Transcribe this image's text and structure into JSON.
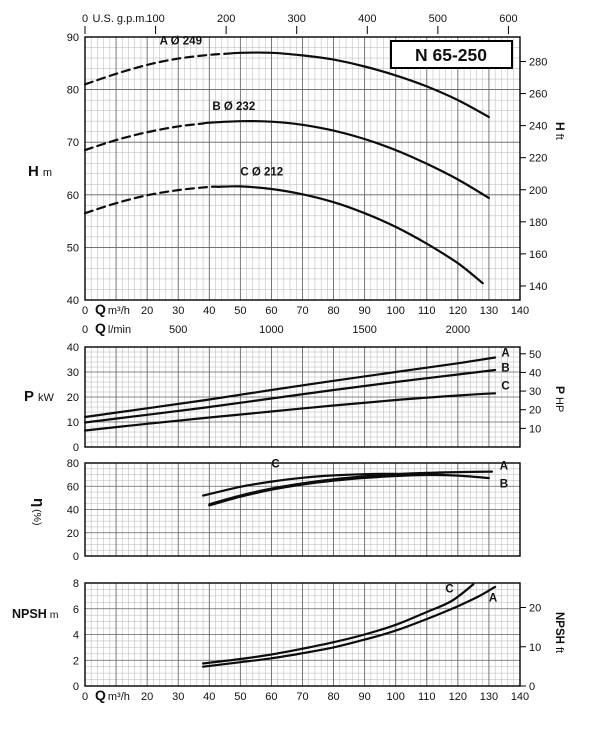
{
  "title": "N 65-250",
  "chart_data": [
    {
      "id": "head",
      "type": "line",
      "x_axis": {
        "symbol": "Q",
        "unit": "m³/h",
        "min": 0,
        "max": 140,
        "major": 10,
        "minor": 2,
        "labeled": true
      },
      "y_axis": {
        "symbol": "H",
        "unit": "m",
        "min": 40,
        "max": 90,
        "major": 10,
        "minor": 2
      },
      "top_axis": {
        "label": "U.S. g.p.m.",
        "unit_key": "usgpm",
        "ticks": [
          0,
          100,
          200,
          300,
          400,
          500,
          600
        ]
      },
      "right_axis": {
        "symbol": "H",
        "unit": "ft",
        "unit_key": "ft",
        "ticks": [
          140,
          160,
          180,
          200,
          220,
          240,
          260,
          280
        ]
      },
      "second_bottom": {
        "symbol": "Q",
        "unit": "l/min",
        "unit_key": "lmin",
        "ticks": [
          0,
          500,
          1000,
          1500,
          2000
        ]
      },
      "series": [
        {
          "name": "A",
          "impeller": "Ø 249",
          "dash_until": 45,
          "points": [
            [
              0,
              81
            ],
            [
              10,
              83
            ],
            [
              20,
              84.7
            ],
            [
              30,
              85.9
            ],
            [
              40,
              86.6
            ],
            [
              50,
              87
            ],
            [
              60,
              87
            ],
            [
              70,
              86.5
            ],
            [
              80,
              85.7
            ],
            [
              90,
              84.4
            ],
            [
              100,
              82.7
            ],
            [
              110,
              80.6
            ],
            [
              120,
              78
            ],
            [
              130,
              74.8
            ]
          ]
        },
        {
          "name": "B",
          "impeller": "Ø 232",
          "dash_until": 38,
          "points": [
            [
              0,
              68.5
            ],
            [
              10,
              70.4
            ],
            [
              20,
              71.9
            ],
            [
              30,
              73
            ],
            [
              40,
              73.7
            ],
            [
              50,
              74
            ],
            [
              60,
              73.9
            ],
            [
              70,
              73.3
            ],
            [
              80,
              72.2
            ],
            [
              90,
              70.6
            ],
            [
              100,
              68.5
            ],
            [
              110,
              65.9
            ],
            [
              120,
              62.9
            ],
            [
              130,
              59.4
            ]
          ]
        },
        {
          "name": "C",
          "impeller": "Ø 212",
          "dash_until": 43,
          "points": [
            [
              0,
              56.5
            ],
            [
              10,
              58.4
            ],
            [
              20,
              59.9
            ],
            [
              30,
              60.9
            ],
            [
              40,
              61.5
            ],
            [
              50,
              61.6
            ],
            [
              60,
              61.1
            ],
            [
              70,
              60.1
            ],
            [
              80,
              58.6
            ],
            [
              90,
              56.5
            ],
            [
              100,
              53.9
            ],
            [
              110,
              50.7
            ],
            [
              120,
              47
            ],
            [
              128,
              43.2
            ]
          ]
        }
      ],
      "curve_labels": [
        {
          "text": "A Ø 249",
          "q": 24,
          "v": 88.6
        },
        {
          "text": "B Ø 232",
          "q": 41,
          "v": 76.1
        },
        {
          "text": "C Ø 212",
          "q": 50,
          "v": 63.7
        }
      ]
    },
    {
      "id": "power",
      "type": "line",
      "x_axis": {
        "min": 0,
        "max": 140,
        "major": 10,
        "minor": 2,
        "labeled": false
      },
      "y_axis": {
        "symbol": "P",
        "unit": "kW",
        "min": 0,
        "max": 40,
        "major": 10,
        "minor": 2
      },
      "right_axis": {
        "symbol": "P",
        "unit": "HP",
        "unit_key": "hp",
        "ticks": [
          10,
          20,
          30,
          40,
          50
        ]
      },
      "series": [
        {
          "name": "A",
          "points": [
            [
              0,
              12
            ],
            [
              20,
              15.5
            ],
            [
              40,
              19
            ],
            [
              60,
              22.8
            ],
            [
              80,
              26.5
            ],
            [
              100,
              30
            ],
            [
              120,
              33.5
            ],
            [
              132,
              35.8
            ]
          ]
        },
        {
          "name": "B",
          "points": [
            [
              0,
              9.8
            ],
            [
              20,
              12.9
            ],
            [
              40,
              16
            ],
            [
              60,
              19.4
            ],
            [
              80,
              22.8
            ],
            [
              100,
              26
            ],
            [
              120,
              29
            ],
            [
              132,
              30.8
            ]
          ]
        },
        {
          "name": "C",
          "points": [
            [
              0,
              6.6
            ],
            [
              20,
              9.3
            ],
            [
              40,
              11.8
            ],
            [
              60,
              14.2
            ],
            [
              80,
              16.6
            ],
            [
              100,
              18.8
            ],
            [
              120,
              20.6
            ],
            [
              132,
              21.5
            ]
          ]
        }
      ],
      "curve_labels": [
        {
          "text": "A",
          "q": 134,
          "v": 36.3
        },
        {
          "text": "B",
          "q": 134,
          "v": 30.3
        },
        {
          "text": "C",
          "q": 134,
          "v": 23
        }
      ]
    },
    {
      "id": "efficiency",
      "type": "line",
      "x_axis": {
        "min": 0,
        "max": 140,
        "major": 10,
        "minor": 2,
        "labeled": false
      },
      "y_axis": {
        "symbol": "η",
        "unit": "(%)",
        "min": 0,
        "max": 80,
        "major": 20,
        "minor": 5
      },
      "series": [
        {
          "name": "C",
          "points": [
            [
              38,
              52
            ],
            [
              50,
              59.5
            ],
            [
              60,
              64
            ],
            [
              70,
              67.3
            ],
            [
              80,
              69.3
            ],
            [
              90,
              70.4
            ],
            [
              100,
              70.7
            ],
            [
              110,
              70.2
            ],
            [
              116,
              69.7
            ]
          ]
        },
        {
          "name": "A",
          "points": [
            [
              40,
              44.5
            ],
            [
              50,
              52
            ],
            [
              60,
              58
            ],
            [
              70,
              62.5
            ],
            [
              80,
              66
            ],
            [
              90,
              68.5
            ],
            [
              100,
              70.3
            ],
            [
              110,
              71.5
            ],
            [
              120,
              72.2
            ],
            [
              131,
              72.6
            ]
          ]
        },
        {
          "name": "B",
          "points": [
            [
              40,
              43.5
            ],
            [
              50,
              51
            ],
            [
              60,
              57
            ],
            [
              70,
              61.5
            ],
            [
              80,
              64.8
            ],
            [
              90,
              67.2
            ],
            [
              100,
              68.8
            ],
            [
              110,
              69.7
            ],
            [
              120,
              69.2
            ],
            [
              130,
              67
            ]
          ]
        }
      ],
      "curve_labels": [
        {
          "text": "C",
          "q": 60,
          "v": 76
        },
        {
          "text": "A",
          "q": 133.5,
          "v": 74.5
        },
        {
          "text": "B",
          "q": 133.5,
          "v": 59
        }
      ]
    },
    {
      "id": "npsh",
      "type": "line",
      "x_axis": {
        "symbol": "Q",
        "unit": "m³/h",
        "min": 0,
        "max": 140,
        "major": 10,
        "minor": 2,
        "labeled": true
      },
      "y_axis": {
        "symbol": "NPSH",
        "unit": "m",
        "min": 0,
        "max": 8,
        "major": 2,
        "minor": 0.5
      },
      "right_axis": {
        "symbol": "NPSH",
        "unit": "ft",
        "unit_key": "ft",
        "ticks": [
          0,
          10,
          20
        ]
      },
      "series": [
        {
          "name": "A",
          "points": [
            [
              38,
              1.5
            ],
            [
              50,
              1.85
            ],
            [
              60,
              2.15
            ],
            [
              70,
              2.55
            ],
            [
              80,
              3
            ],
            [
              90,
              3.6
            ],
            [
              100,
              4.3
            ],
            [
              110,
              5.2
            ],
            [
              120,
              6.2
            ],
            [
              127,
              7
            ],
            [
              132,
              7.7
            ]
          ]
        },
        {
          "name": "C",
          "points": [
            [
              38,
              1.75
            ],
            [
              50,
              2.1
            ],
            [
              60,
              2.45
            ],
            [
              70,
              2.9
            ],
            [
              80,
              3.4
            ],
            [
              90,
              4
            ],
            [
              100,
              4.75
            ],
            [
              110,
              5.75
            ],
            [
              118,
              6.6
            ],
            [
              125,
              7.9
            ]
          ]
        }
      ],
      "curve_labels": [
        {
          "text": "C",
          "q": 116,
          "v": 7.25
        },
        {
          "text": "A",
          "q": 130,
          "v": 6.55
        }
      ]
    }
  ]
}
